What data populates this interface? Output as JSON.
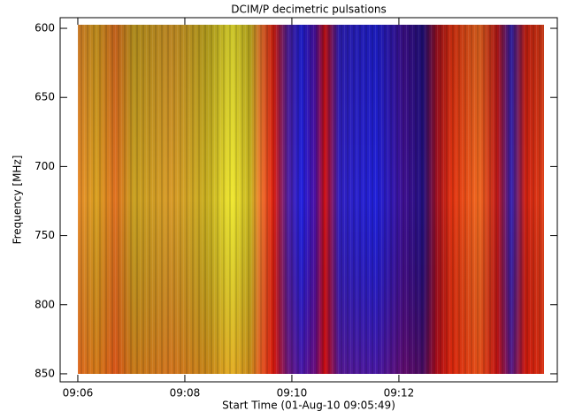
{
  "chart_data": {
    "type": "spectrogram",
    "title": "DCIM/P decimetric pulsations",
    "x_label": "Start Time (01-Aug-10 09:05:49)",
    "y_label": "Frequency [MHz]",
    "xlim": [
      545.67,
      554.96
    ],
    "xticks": [
      {
        "value": 546,
        "label": "09:06"
      },
      {
        "value": 548,
        "label": "09:08"
      },
      {
        "value": 550,
        "label": "09:10"
      },
      {
        "value": 552,
        "label": "09:12"
      }
    ],
    "ylim": [
      855.8,
      592.3
    ],
    "yticks": [
      600,
      650,
      700,
      750,
      800,
      850
    ]
  }
}
